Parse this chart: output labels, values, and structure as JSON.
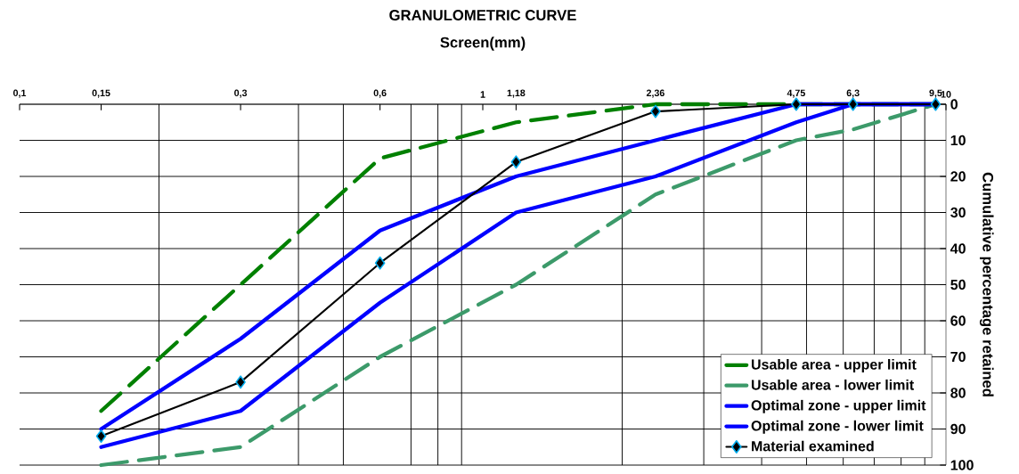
{
  "chart_data": {
    "type": "line",
    "title": "GRANULOMETRIC CURVE",
    "xlabel": "Screen(mm)",
    "ylabel": "Cumulative percentage retained",
    "x": [
      0.15,
      0.3,
      0.6,
      1.18,
      2.36,
      4.75,
      6.3,
      9.5
    ],
    "series": [
      {
        "name": "Usable area - upper limit",
        "color": "#008000",
        "line_style": "dashed",
        "marker": "none",
        "values": [
          85,
          50,
          15,
          5,
          0,
          0,
          0,
          0
        ]
      },
      {
        "name": "Usable area - lower limit",
        "color": "#3c9a6a",
        "line_style": "dashed",
        "marker": "none",
        "values": [
          100,
          95,
          70,
          50,
          25,
          10,
          7,
          0
        ]
      },
      {
        "name": "Optimal zone - upper limit",
        "color": "#0000ff",
        "line_style": "solid",
        "marker": "none",
        "values": [
          90,
          65,
          35,
          20,
          10,
          0,
          0,
          0
        ]
      },
      {
        "name": "Optimal zone - lower limit",
        "color": "#0000ff",
        "line_style": "solid",
        "marker": "none",
        "values": [
          95,
          85,
          55,
          30,
          20,
          5,
          0,
          0
        ]
      },
      {
        "name": "Material examined",
        "color": "#000000",
        "line_style": "solid",
        "marker": "diamond",
        "values": [
          92,
          77,
          44,
          16,
          2,
          0,
          0,
          0
        ]
      }
    ],
    "log": "x",
    "xlim": [
      0.1,
      10
    ],
    "ylim": [
      100,
      0
    ],
    "xticks": [
      {
        "value": 0.1,
        "label": "0,1"
      },
      {
        "value": 0.15,
        "label": "0,15"
      },
      {
        "value": 0.2,
        "label": null
      },
      {
        "value": 0.3,
        "label": "0,3"
      },
      {
        "value": 0.4,
        "label": null
      },
      {
        "value": 0.5,
        "label": null
      },
      {
        "value": 0.6,
        "label": "0,6"
      },
      {
        "value": 0.7,
        "label": null
      },
      {
        "value": 0.8,
        "label": null
      },
      {
        "value": 0.9,
        "label": null
      },
      1,
      {
        "value": 1.18,
        "label": "1,18"
      },
      {
        "value": 2,
        "label": null
      },
      {
        "value": 2.36,
        "label": "2,36"
      },
      {
        "value": 3,
        "label": null
      },
      {
        "value": 4,
        "label": null
      },
      {
        "value": 4.75,
        "label": "4,75"
      },
      {
        "value": 5,
        "label": null
      },
      {
        "value": 6,
        "label": null
      },
      {
        "value": 6.3,
        "label": "6,3"
      },
      {
        "value": 7,
        "label": null
      },
      {
        "value": 8,
        "label": null
      },
      {
        "value": 9,
        "label": null
      },
      {
        "value": 9.5,
        "label": "9,5"
      },
      10
    ],
    "yticks": [
      0,
      10,
      20,
      30,
      40,
      50,
      60,
      70,
      80,
      90,
      100
    ],
    "grid": true,
    "legend": "bottom right"
  }
}
